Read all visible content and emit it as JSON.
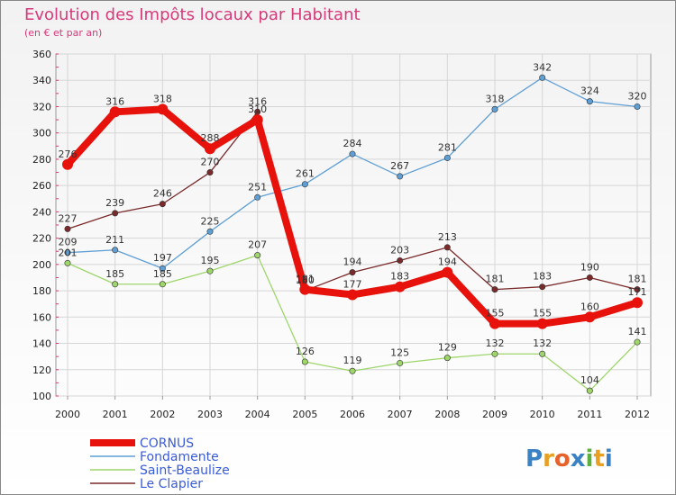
{
  "chart_data": {
    "type": "line",
    "title": "Evolution des Impôts locaux par Habitant",
    "subtitle": "(en € et par an)",
    "x": [
      "2000",
      "2001",
      "2002",
      "2003",
      "2004",
      "2005",
      "2006",
      "2007",
      "2008",
      "2009",
      "2010",
      "2011",
      "2012"
    ],
    "ylim": [
      100,
      360
    ],
    "yticks": [
      100,
      120,
      140,
      160,
      180,
      200,
      220,
      240,
      260,
      280,
      300,
      320,
      340,
      360
    ],
    "grid": true,
    "legend_position": "bottom-left",
    "series": [
      {
        "name": "CORNUS",
        "color": "#e8120c",
        "values": [
          276,
          316,
          318,
          288,
          310,
          181,
          177,
          183,
          194,
          155,
          155,
          160,
          171
        ]
      },
      {
        "name": "Fondamente",
        "color": "#5f9fd4",
        "values": [
          209,
          211,
          197,
          225,
          251,
          261,
          284,
          267,
          281,
          318,
          342,
          324,
          320
        ]
      },
      {
        "name": "Saint-Beaulize",
        "color": "#9ed66b",
        "values": [
          201,
          185,
          185,
          195,
          207,
          126,
          119,
          125,
          129,
          132,
          132,
          104,
          141
        ]
      },
      {
        "name": "Le Clapier",
        "color": "#7a2a2a",
        "values": [
          227,
          239,
          246,
          270,
          316,
          180,
          194,
          203,
          213,
          181,
          183,
          190,
          181
        ]
      }
    ]
  },
  "logo": {
    "text": "Proxiti",
    "colors": [
      "#3b82c4",
      "#e8a020",
      "#e8602a",
      "#3b82c4",
      "#5bb040",
      "#e8a020",
      "#3b82c4"
    ]
  }
}
